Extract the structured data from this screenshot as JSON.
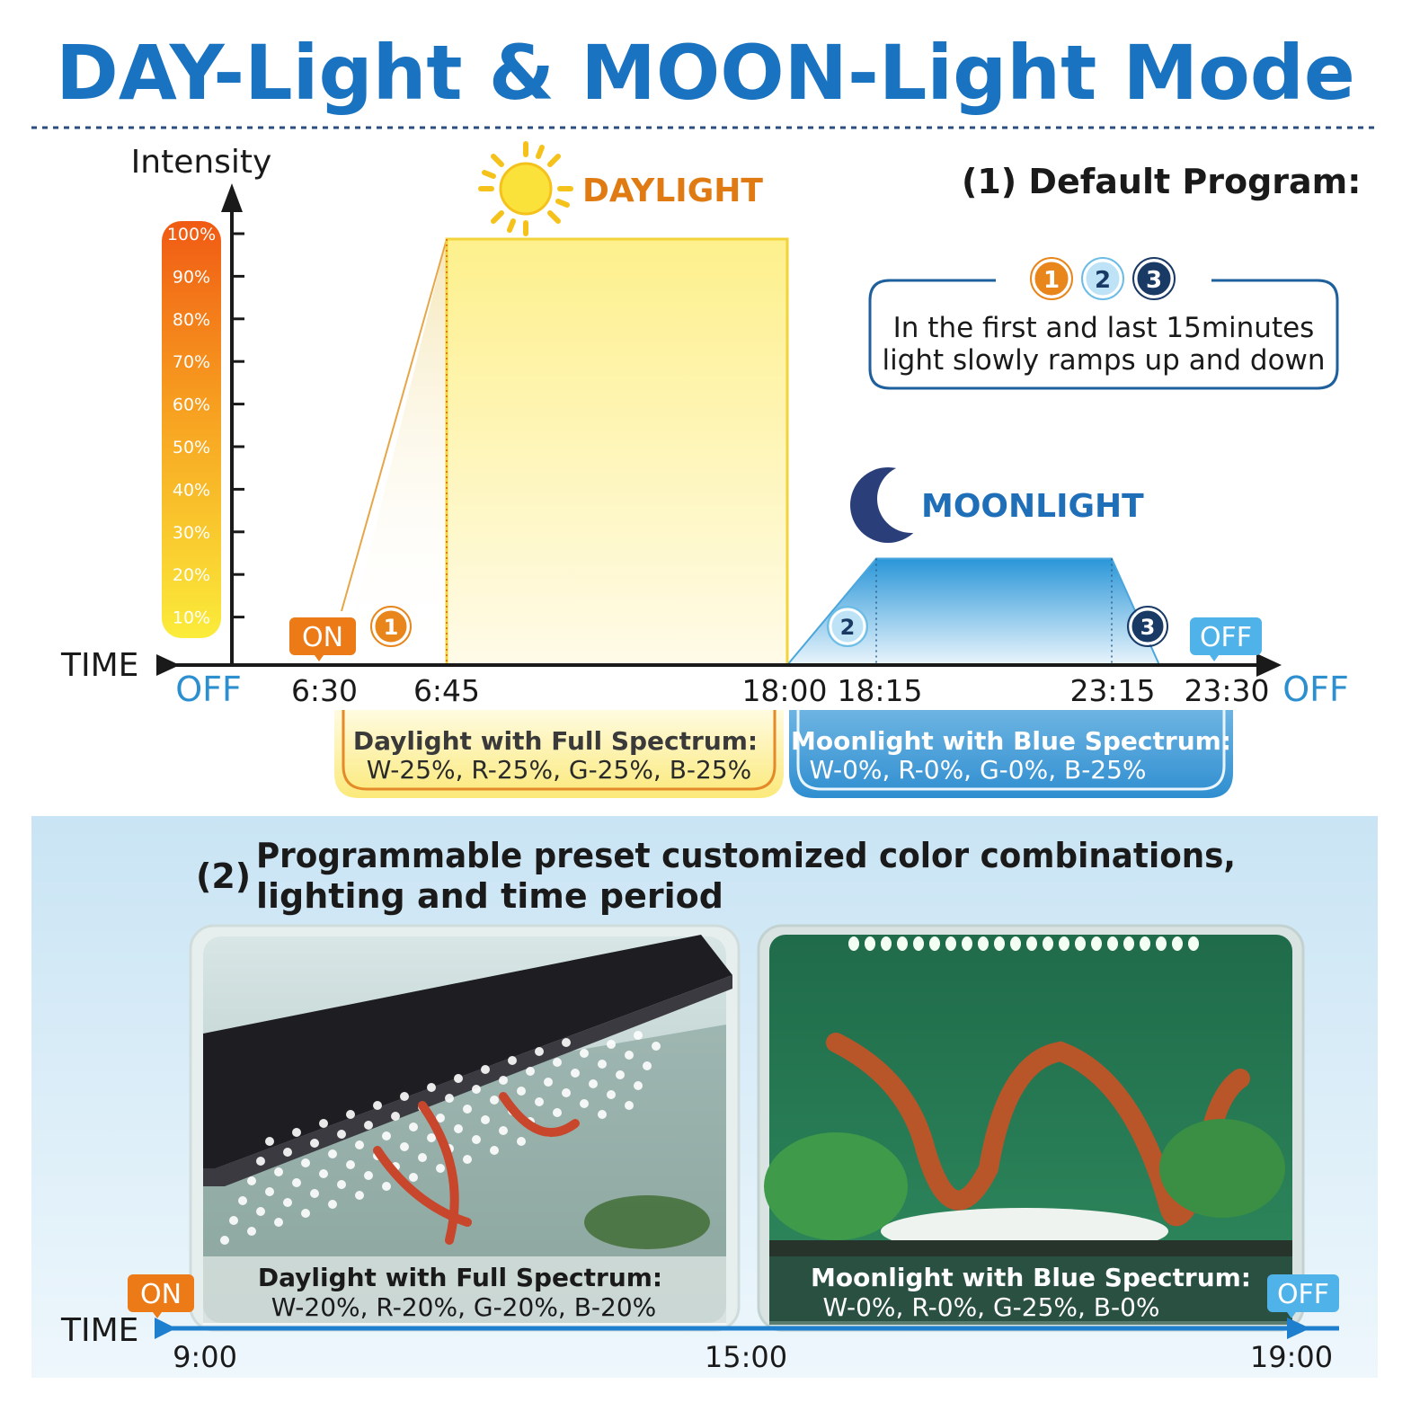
{
  "title": "DAY-Light & MOON-Light Mode",
  "default_program": {
    "heading": "(1) Default Program:",
    "step_badges": [
      "1",
      "2",
      "3"
    ],
    "note_line1": "In the first and last 15minutes",
    "note_line2": "light slowly ramps up and down"
  },
  "daylight_label": "DAYLIGHT",
  "moonlight_label": "MOONLIGHT",
  "on_label": "ON",
  "off_label": "OFF",
  "time_axis_label": "TIME",
  "daylight_spec": {
    "title": "Daylight with Full Spectrum:",
    "values": "W-25%, R-25%, G-25%, B-25%"
  },
  "moonlight_spec": {
    "title": "Moonlight with Blue Spectrum:",
    "values": "W-0%, R-0%, G-0%, B-25%"
  },
  "section2": {
    "number": "(2)",
    "line1": "Programmable preset customized color combinations,",
    "line2": "lighting and time period",
    "photo1_caption_title": "Daylight with Full Spectrum:",
    "photo1_caption_values": "W-20%, R-20%, G-20%, B-20%",
    "photo2_caption_title": "Moonlight with Blue Spectrum:",
    "photo2_caption_values": "W-0%, R-0%, G-25%, B-0%",
    "on_label": "ON",
    "off_label": "OFF",
    "time_label": "TIME",
    "times": [
      "9:00",
      "15:00",
      "19:00"
    ]
  },
  "colors": {
    "title_blue": "#1a73c0",
    "daylight_orange": "#e07b14",
    "moon_navy": "#2a3f7a",
    "moon_blue": "#2b8fd0",
    "off_blue": "#2b8fd0"
  },
  "chart_data": {
    "type": "area",
    "ylabel": "Intensity",
    "xlabel": "TIME",
    "y_ticks": [
      "10%",
      "20%",
      "30%",
      "40%",
      "50%",
      "60%",
      "70%",
      "80%",
      "90%",
      "100%"
    ],
    "x_ticks": [
      "OFF",
      "6:30",
      "6:45",
      "18:00",
      "18:15",
      "23:15",
      "23:30",
      "OFF"
    ],
    "ylim": [
      0,
      100
    ],
    "series": [
      {
        "name": "DAYLIGHT",
        "points": [
          [
            "6:30",
            0
          ],
          [
            "6:45",
            100
          ],
          [
            "18:00",
            100
          ],
          [
            "18:00",
            0
          ]
        ]
      },
      {
        "name": "MOONLIGHT",
        "points": [
          [
            "18:00",
            0
          ],
          [
            "18:15",
            25
          ],
          [
            "23:15",
            25
          ],
          [
            "23:30",
            0
          ]
        ]
      }
    ]
  }
}
